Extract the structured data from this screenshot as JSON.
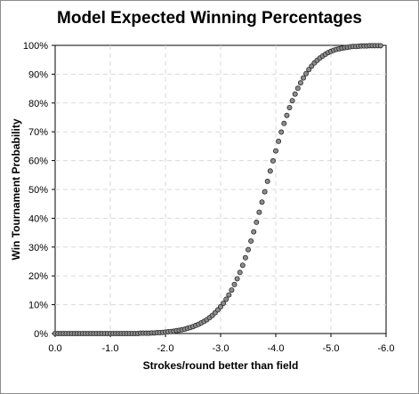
{
  "chart_data": {
    "type": "scatter",
    "title": "Model Expected Winning Percentages",
    "xlabel": "Strokes/round better than field",
    "ylabel": "Win Tournament Probability",
    "xlim": [
      0.0,
      -6.0
    ],
    "ylim": [
      0,
      1
    ],
    "x_ticks": [
      "0.0",
      "-1.0",
      "-2.0",
      "-3.0",
      "-4.0",
      "-5.0",
      "-6.0"
    ],
    "y_ticks": [
      "0%",
      "10%",
      "20%",
      "30%",
      "40%",
      "50%",
      "60%",
      "70%",
      "80%",
      "90%",
      "100%"
    ],
    "grid": true,
    "legend": "none",
    "series": [
      {
        "marker": "circle",
        "color": "#555555",
        "points": [
          [
            0.0,
            0.0
          ],
          [
            -0.05,
            0.0
          ],
          [
            -0.1,
            0.0
          ],
          [
            -0.15,
            0.0
          ],
          [
            -0.2,
            0.0
          ],
          [
            -0.25,
            0.0
          ],
          [
            -0.3,
            0.0
          ],
          [
            -0.35,
            0.0
          ],
          [
            -0.4,
            0.0
          ],
          [
            -0.45,
            0.0
          ],
          [
            -0.5,
            0.0
          ],
          [
            -0.55,
            0.0
          ],
          [
            -0.6,
            0.0
          ],
          [
            -0.65,
            0.0
          ],
          [
            -0.7,
            0.0
          ],
          [
            -0.75,
            0.0
          ],
          [
            -0.8,
            0.0
          ],
          [
            -0.85,
            0.0
          ],
          [
            -0.9,
            0.0
          ],
          [
            -0.95,
            0.0
          ],
          [
            -1.0,
            0.0
          ],
          [
            -1.05,
            0.0
          ],
          [
            -1.1,
            0.0
          ],
          [
            -1.15,
            0.0
          ],
          [
            -1.2,
            0.0
          ],
          [
            -1.25,
            0.0
          ],
          [
            -1.3,
            0.0
          ],
          [
            -1.35,
            0.0
          ],
          [
            -1.4,
            0.0
          ],
          [
            -1.45,
            0.0
          ],
          [
            -1.5,
            0.0
          ],
          [
            -1.55,
            0.001
          ],
          [
            -1.6,
            0.001
          ],
          [
            -1.65,
            0.001
          ],
          [
            -1.7,
            0.001
          ],
          [
            -1.75,
            0.002
          ],
          [
            -1.8,
            0.002
          ],
          [
            -1.85,
            0.003
          ],
          [
            -1.9,
            0.003
          ],
          [
            -1.95,
            0.004
          ],
          [
            -2.0,
            0.005
          ],
          [
            -2.05,
            0.006
          ],
          [
            -2.1,
            0.007
          ],
          [
            -2.15,
            0.008
          ],
          [
            -2.2,
            0.01
          ],
          [
            -2.25,
            0.011
          ],
          [
            -2.3,
            0.013
          ],
          [
            -2.35,
            0.015
          ],
          [
            -2.4,
            0.018
          ],
          [
            -2.45,
            0.021
          ],
          [
            -2.5,
            0.024
          ],
          [
            -2.55,
            0.028
          ],
          [
            -2.6,
            0.032
          ],
          [
            -2.65,
            0.037
          ],
          [
            -2.7,
            0.042
          ],
          [
            -2.75,
            0.048
          ],
          [
            -2.8,
            0.055
          ],
          [
            -2.85,
            0.063
          ],
          [
            -2.9,
            0.072
          ],
          [
            -2.95,
            0.082
          ],
          [
            -3.0,
            0.093
          ],
          [
            -3.05,
            0.105
          ],
          [
            -3.1,
            0.119
          ],
          [
            -3.15,
            0.134
          ],
          [
            -3.2,
            0.151
          ],
          [
            -3.25,
            0.17
          ],
          [
            -3.3,
            0.19
          ],
          [
            -3.35,
            0.212
          ],
          [
            -3.4,
            0.237
          ],
          [
            -3.45,
            0.263
          ],
          [
            -3.5,
            0.291
          ],
          [
            -3.55,
            0.321
          ],
          [
            -3.6,
            0.353
          ],
          [
            -3.65,
            0.386
          ],
          [
            -3.7,
            0.421
          ],
          [
            -3.75,
            0.456
          ],
          [
            -3.8,
            0.492
          ],
          [
            -3.85,
            0.528
          ],
          [
            -3.9,
            0.564
          ],
          [
            -3.95,
            0.599
          ],
          [
            -4.0,
            0.634
          ],
          [
            -4.05,
            0.667
          ],
          [
            -4.1,
            0.699
          ],
          [
            -4.15,
            0.729
          ],
          [
            -4.2,
            0.757
          ],
          [
            -4.25,
            0.784
          ],
          [
            -4.3,
            0.808
          ],
          [
            -4.35,
            0.831
          ],
          [
            -4.4,
            0.851
          ],
          [
            -4.45,
            0.87
          ],
          [
            -4.5,
            0.887
          ],
          [
            -4.55,
            0.902
          ],
          [
            -4.6,
            0.916
          ],
          [
            -4.65,
            0.928
          ],
          [
            -4.7,
            0.939
          ],
          [
            -4.75,
            0.948
          ],
          [
            -4.8,
            0.956
          ],
          [
            -4.85,
            0.963
          ],
          [
            -4.9,
            0.969
          ],
          [
            -4.95,
            0.975
          ],
          [
            -5.0,
            0.979
          ],
          [
            -5.05,
            0.983
          ],
          [
            -5.1,
            0.986
          ],
          [
            -5.15,
            0.988
          ],
          [
            -5.2,
            0.99
          ],
          [
            -5.25,
            0.992
          ],
          [
            -5.3,
            0.993
          ],
          [
            -5.35,
            0.995
          ],
          [
            -5.4,
            0.996
          ],
          [
            -5.45,
            0.996
          ],
          [
            -5.5,
            0.997
          ],
          [
            -5.55,
            0.998
          ],
          [
            -5.6,
            0.998
          ],
          [
            -5.65,
            0.998
          ],
          [
            -5.7,
            0.999
          ],
          [
            -5.75,
            0.999
          ],
          [
            -5.8,
            0.999
          ],
          [
            -5.85,
            0.999
          ],
          [
            -5.9,
            0.999
          ]
        ]
      }
    ]
  }
}
